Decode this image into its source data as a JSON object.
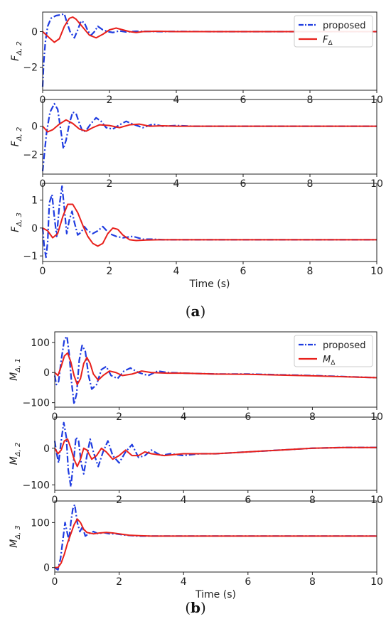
{
  "chart_data": [
    {
      "type": "line",
      "xlim": [
        0,
        10
      ],
      "ylim": [
        -3.3,
        1.1
      ],
      "xticks": [
        "0",
        "2",
        "4",
        "6",
        "8",
        "10"
      ],
      "yticks": [
        {
          "v": 0,
          "t": "0"
        },
        {
          "v": -2,
          "t": "−2"
        }
      ],
      "ylabel": "F",
      "ylabel_sub": "Δ, 2",
      "xlabel": "",
      "legend": {
        "position": "top-right",
        "entries": [
          "proposed",
          "F"
        ],
        "entry_subs": [
          "",
          "Δ"
        ]
      },
      "series": [
        {
          "style": "dashdot",
          "color": "#1f3ce0",
          "x": [
            0,
            0.03,
            0.08,
            0.15,
            0.25,
            0.4,
            0.55,
            0.65,
            0.72,
            0.82,
            0.95,
            1.05,
            1.15,
            1.25,
            1.35,
            1.45,
            1.55,
            1.65,
            1.8,
            1.95,
            2.1,
            2.3,
            2.5,
            2.8,
            3.2,
            3.6,
            4.0,
            5.0,
            10
          ],
          "y": [
            -3.1,
            -1.8,
            -0.6,
            0.3,
            0.75,
            0.9,
            0.95,
            1.0,
            0.55,
            0.0,
            -0.35,
            0.1,
            0.6,
            0.5,
            0.05,
            -0.2,
            0.0,
            0.3,
            0.1,
            0.0,
            -0.05,
            0.04,
            -0.02,
            0.02,
            0.01,
            0.0,
            0.01,
            0.0,
            0.0
          ]
        },
        {
          "style": "solid",
          "color": "#e8201b",
          "x": [
            0,
            0.2,
            0.35,
            0.5,
            0.65,
            0.8,
            0.9,
            1.0,
            1.2,
            1.4,
            1.6,
            1.8,
            2.0,
            2.2,
            2.4,
            2.6,
            2.8,
            3.0,
            3.4,
            4.0,
            10
          ],
          "y": [
            0.0,
            -0.35,
            -0.6,
            -0.4,
            0.3,
            0.75,
            0.82,
            0.7,
            0.25,
            -0.2,
            -0.35,
            -0.15,
            0.1,
            0.2,
            0.1,
            0.0,
            -0.05,
            0.0,
            0.02,
            0.0,
            0.0
          ]
        }
      ]
    },
    {
      "type": "line",
      "xlim": [
        0,
        10
      ],
      "ylim": [
        -3.4,
        1.9
      ],
      "xticks": [
        "0",
        "2",
        "4",
        "6",
        "8",
        "10"
      ],
      "yticks": [
        {
          "v": 0,
          "t": "0"
        },
        {
          "v": -2,
          "t": "−2"
        }
      ],
      "ylabel": "F",
      "ylabel_sub": "Δ, 2",
      "xlabel": "",
      "series": [
        {
          "style": "dashdot",
          "color": "#1f3ce0",
          "x": [
            0,
            0.05,
            0.12,
            0.22,
            0.35,
            0.45,
            0.55,
            0.62,
            0.7,
            0.8,
            0.9,
            1.0,
            1.1,
            1.2,
            1.3,
            1.45,
            1.6,
            1.75,
            1.9,
            2.1,
            2.3,
            2.5,
            2.7,
            3.0,
            3.3,
            3.6,
            4.0,
            4.5,
            10
          ],
          "y": [
            -3.2,
            -2.0,
            -0.4,
            1.0,
            1.6,
            1.2,
            -0.4,
            -1.6,
            -1.0,
            0.2,
            1.0,
            0.9,
            0.2,
            -0.4,
            -0.3,
            0.2,
            0.6,
            0.35,
            -0.1,
            -0.2,
            0.1,
            0.35,
            0.15,
            -0.1,
            0.15,
            0.0,
            0.05,
            0.0,
            0.0
          ]
        },
        {
          "style": "solid",
          "color": "#e8201b",
          "x": [
            0,
            0.15,
            0.3,
            0.5,
            0.7,
            0.9,
            1.1,
            1.3,
            1.5,
            1.7,
            2.0,
            2.3,
            2.6,
            2.9,
            3.2,
            3.6,
            4.0,
            10
          ],
          "y": [
            0.0,
            -0.4,
            -0.25,
            0.15,
            0.45,
            0.2,
            -0.2,
            -0.35,
            -0.1,
            0.1,
            0.05,
            -0.1,
            0.1,
            0.15,
            0.0,
            0.03,
            0.0,
            0.0
          ]
        }
      ]
    },
    {
      "type": "line",
      "xlim": [
        0,
        10
      ],
      "ylim": [
        -1.2,
        1.6
      ],
      "xticks": [
        "0",
        "2",
        "4",
        "6",
        "8",
        "10"
      ],
      "yticks": [
        {
          "v": 1,
          "t": "1"
        },
        {
          "v": 0,
          "t": "0"
        },
        {
          "v": -1,
          "t": "−1"
        }
      ],
      "ylabel": "F",
      "ylabel_sub": "Δ, 3",
      "xlabel": "Time (s)",
      "series": [
        {
          "style": "dashdot",
          "color": "#1f3ce0",
          "x": [
            0,
            0.05,
            0.1,
            0.15,
            0.2,
            0.28,
            0.35,
            0.42,
            0.5,
            0.58,
            0.65,
            0.72,
            0.8,
            0.88,
            0.95,
            1.05,
            1.15,
            1.25,
            1.35,
            1.5,
            1.65,
            1.8,
            2.0,
            2.2,
            2.4,
            2.7,
            3.0,
            3.3,
            3.6,
            4.0,
            10
          ],
          "y": [
            0.0,
            -0.7,
            -1.05,
            -0.5,
            0.9,
            1.2,
            0.4,
            -0.3,
            0.8,
            1.5,
            0.7,
            -0.2,
            0.3,
            0.6,
            0.2,
            -0.25,
            -0.15,
            0.05,
            -0.1,
            -0.2,
            -0.1,
            0.05,
            -0.2,
            -0.3,
            -0.35,
            -0.3,
            -0.4,
            -0.4,
            -0.42,
            -0.42,
            -0.42
          ]
        },
        {
          "style": "solid",
          "color": "#e8201b",
          "x": [
            0,
            0.15,
            0.3,
            0.45,
            0.6,
            0.75,
            0.9,
            1.05,
            1.2,
            1.35,
            1.5,
            1.65,
            1.8,
            1.95,
            2.1,
            2.25,
            2.4,
            2.6,
            2.8,
            3.1,
            3.5,
            4.0,
            10
          ],
          "y": [
            0.0,
            -0.1,
            -0.35,
            -0.2,
            0.4,
            0.85,
            0.85,
            0.55,
            0.1,
            -0.3,
            -0.55,
            -0.65,
            -0.55,
            -0.2,
            0.0,
            -0.05,
            -0.25,
            -0.42,
            -0.45,
            -0.43,
            -0.42,
            -0.42,
            -0.42
          ]
        }
      ]
    },
    {
      "type": "line",
      "xlim": [
        0,
        10
      ],
      "ylim": [
        -115,
        135
      ],
      "xticks": [
        "0",
        "2",
        "4",
        "6",
        "8",
        "10"
      ],
      "yticks": [
        {
          "v": 100,
          "t": "100"
        },
        {
          "v": 0,
          "t": "0"
        },
        {
          "v": -100,
          "t": "−100"
        }
      ],
      "ylabel": "M",
      "ylabel_sub": "Δ, 1",
      "xlabel": "",
      "legend": {
        "position": "top-right",
        "entries": [
          "proposed",
          "M"
        ],
        "entry_subs": [
          "",
          "Δ"
        ]
      },
      "series": [
        {
          "style": "dashdot",
          "color": "#1f3ce0",
          "x": [
            0,
            0.05,
            0.12,
            0.2,
            0.3,
            0.38,
            0.45,
            0.52,
            0.6,
            0.68,
            0.76,
            0.85,
            0.95,
            1.05,
            1.15,
            1.3,
            1.45,
            1.6,
            1.75,
            1.95,
            2.15,
            2.35,
            2.6,
            2.9,
            3.2,
            3.5,
            4.0,
            5.0,
            6.0,
            8.0,
            10
          ],
          "y": [
            -10,
            -40,
            -30,
            40,
            110,
            120,
            60,
            -30,
            -105,
            -70,
            40,
            90,
            70,
            -10,
            -55,
            -40,
            10,
            20,
            -10,
            -20,
            5,
            15,
            0,
            -10,
            5,
            0,
            -2,
            -5,
            -5,
            -10,
            -17
          ]
        },
        {
          "style": "solid",
          "color": "#e8201b",
          "x": [
            0,
            0.1,
            0.2,
            0.3,
            0.4,
            0.5,
            0.6,
            0.7,
            0.8,
            0.9,
            1.0,
            1.1,
            1.2,
            1.35,
            1.5,
            1.7,
            1.9,
            2.1,
            2.4,
            2.7,
            3.0,
            3.5,
            4.0,
            5.0,
            6.0,
            8.0,
            10
          ],
          "y": [
            0,
            -10,
            20,
            55,
            65,
            35,
            -10,
            -40,
            -20,
            30,
            50,
            30,
            -5,
            -25,
            -10,
            5,
            0,
            -10,
            -5,
            5,
            0,
            -2,
            -2,
            -5,
            -6,
            -11,
            -17
          ]
        }
      ]
    },
    {
      "type": "line",
      "xlim": [
        0,
        10
      ],
      "ylim": [
        -115,
        85
      ],
      "xticks": [
        "0",
        "2",
        "4",
        "6",
        "8",
        "10"
      ],
      "yticks": [
        {
          "v": 0,
          "t": "0"
        },
        {
          "v": -100,
          "t": "−100"
        }
      ],
      "ylabel": "M",
      "ylabel_sub": "Δ, 2",
      "xlabel": "",
      "series": [
        {
          "style": "dashdot",
          "color": "#1f3ce0",
          "x": [
            0,
            0.05,
            0.12,
            0.2,
            0.28,
            0.36,
            0.42,
            0.5,
            0.58,
            0.66,
            0.74,
            0.82,
            0.9,
            1.0,
            1.1,
            1.2,
            1.35,
            1.5,
            1.65,
            1.8,
            2.0,
            2.2,
            2.4,
            2.6,
            2.8,
            3.0,
            3.3,
            3.6,
            4.0,
            4.5,
            5.0,
            6.0,
            7.0,
            8.0,
            9.0,
            10
          ],
          "y": [
            20,
            -10,
            -40,
            20,
            70,
            30,
            -60,
            -105,
            -40,
            30,
            20,
            -40,
            -70,
            -20,
            25,
            -10,
            -50,
            -10,
            20,
            -20,
            -40,
            -10,
            10,
            -25,
            -20,
            -5,
            -20,
            -15,
            -20,
            -15,
            -15,
            -10,
            -5,
            0,
            2,
            2
          ]
        },
        {
          "style": "solid",
          "color": "#e8201b",
          "x": [
            0,
            0.1,
            0.2,
            0.3,
            0.4,
            0.5,
            0.6,
            0.7,
            0.8,
            0.9,
            1.0,
            1.15,
            1.3,
            1.45,
            1.6,
            1.8,
            2.0,
            2.2,
            2.4,
            2.6,
            2.8,
            3.0,
            3.4,
            4.0,
            5.0,
            6.0,
            7.0,
            8.0,
            9.0,
            10
          ],
          "y": [
            0,
            -15,
            -5,
            20,
            25,
            0,
            -30,
            -50,
            -30,
            0,
            -5,
            -30,
            -20,
            0,
            -10,
            -30,
            -20,
            -5,
            -20,
            -20,
            -10,
            -15,
            -20,
            -15,
            -15,
            -10,
            -5,
            0,
            2,
            2
          ]
        }
      ]
    },
    {
      "type": "line",
      "xlim": [
        0,
        10
      ],
      "ylim": [
        -10,
        148
      ],
      "xticks": [
        "0",
        "2",
        "4",
        "6",
        "8",
        "10"
      ],
      "yticks": [
        {
          "v": 100,
          "t": "100"
        },
        {
          "v": 0,
          "t": "0"
        }
      ],
      "ylabel": "M",
      "ylabel_sub": "Δ, 3",
      "xlabel": "Time (s)",
      "series": [
        {
          "style": "dashdot",
          "color": "#1f3ce0",
          "x": [
            0,
            0.1,
            0.18,
            0.25,
            0.32,
            0.38,
            0.44,
            0.5,
            0.56,
            0.62,
            0.7,
            0.78,
            0.86,
            0.95,
            1.05,
            1.2,
            1.35,
            1.5,
            1.7,
            1.9,
            2.2,
            2.6,
            3.0,
            10
          ],
          "y": [
            0,
            -5,
            20,
            60,
            100,
            80,
            60,
            100,
            130,
            140,
            100,
            80,
            90,
            70,
            75,
            80,
            75,
            78,
            75,
            75,
            72,
            70,
            70,
            70
          ]
        },
        {
          "style": "solid",
          "color": "#e8201b",
          "x": [
            0,
            0.1,
            0.2,
            0.3,
            0.4,
            0.5,
            0.6,
            0.7,
            0.8,
            0.9,
            1.0,
            1.2,
            1.4,
            1.6,
            1.8,
            2.0,
            2.3,
            2.6,
            3.0,
            10
          ],
          "y": [
            0,
            0,
            10,
            30,
            55,
            75,
            95,
            108,
            100,
            85,
            78,
            75,
            77,
            78,
            77,
            75,
            72,
            71,
            70,
            70
          ]
        }
      ]
    }
  ],
  "captions": [
    "(a)",
    "(b)"
  ]
}
